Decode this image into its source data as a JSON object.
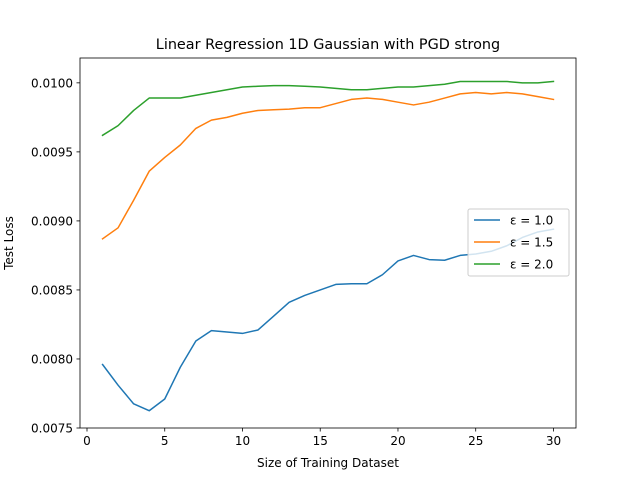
{
  "chart_data": {
    "type": "line",
    "title": "Linear Regression 1D Gaussian with PGD strong",
    "xlabel": "Size of Training Dataset",
    "ylabel": "Test Loss",
    "xlim": [
      -0.45,
      31.45
    ],
    "ylim": [
      0.0075,
      0.01018
    ],
    "xticks": [
      0,
      5,
      10,
      15,
      20,
      25,
      30
    ],
    "xtick_labels": [
      "0",
      "5",
      "10",
      "15",
      "20",
      "25",
      "30"
    ],
    "yticks": [
      0.0075,
      0.008,
      0.0085,
      0.009,
      0.0095,
      0.01
    ],
    "ytick_labels": [
      "0.0075",
      "0.0080",
      "0.0085",
      "0.0090",
      "0.0095",
      "0.0100"
    ],
    "grid": false,
    "legend_position": "center right",
    "x": [
      1,
      2,
      3,
      4,
      5,
      6,
      7,
      8,
      9,
      10,
      11,
      12,
      13,
      14,
      15,
      16,
      17,
      18,
      19,
      20,
      21,
      22,
      23,
      24,
      25,
      26,
      27,
      28,
      29,
      30
    ],
    "series": [
      {
        "name": "ε = 1.0",
        "color": "#1f77b4",
        "values": [
          0.00796,
          0.00781,
          0.007675,
          0.007625,
          0.00771,
          0.00794,
          0.00813,
          0.008205,
          0.008195,
          0.008185,
          0.00821,
          0.00831,
          0.00841,
          0.00846,
          0.0085,
          0.00854,
          0.008545,
          0.008545,
          0.00861,
          0.00871,
          0.00875,
          0.00872,
          0.008715,
          0.00875,
          0.00876,
          0.00878,
          0.00882,
          0.00888,
          0.00892,
          0.00894
        ]
      },
      {
        "name": "ε = 1.5",
        "color": "#ff7f0e",
        "values": [
          0.00887,
          0.00895,
          0.00915,
          0.00936,
          0.00946,
          0.00955,
          0.00967,
          0.00973,
          0.00975,
          0.00978,
          0.0098,
          0.009805,
          0.00981,
          0.00982,
          0.00982,
          0.00985,
          0.00988,
          0.00989,
          0.00988,
          0.00986,
          0.00984,
          0.00986,
          0.00989,
          0.00992,
          0.00993,
          0.00992,
          0.00993,
          0.00992,
          0.0099,
          0.00988
        ]
      },
      {
        "name": "ε = 2.0",
        "color": "#2ca02c",
        "values": [
          0.00962,
          0.00969,
          0.0098,
          0.00989,
          0.00989,
          0.00989,
          0.00991,
          0.00993,
          0.00995,
          0.00997,
          0.009975,
          0.00998,
          0.00998,
          0.009975,
          0.00997,
          0.00996,
          0.00995,
          0.00995,
          0.00996,
          0.00997,
          0.00997,
          0.00998,
          0.00999,
          0.01001,
          0.01001,
          0.01001,
          0.01001,
          0.01,
          0.01,
          0.01001
        ]
      }
    ]
  }
}
